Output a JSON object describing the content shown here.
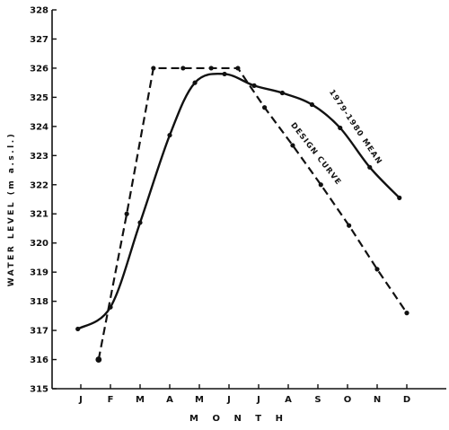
{
  "chart_data": {
    "type": "line",
    "xlabel": "M O N T H",
    "ylabel": "WATER LEVEL (m a.s.l.)",
    "ylim": [
      315,
      328
    ],
    "yticks": [
      315,
      316,
      317,
      318,
      319,
      320,
      321,
      322,
      323,
      324,
      325,
      326,
      327,
      328
    ],
    "categories": [
      "J",
      "F",
      "M",
      "A",
      "M",
      "J",
      "J",
      "A",
      "S",
      "O",
      "N",
      "D"
    ],
    "grid": false,
    "series": [
      {
        "name": "1979-1980 MEAN",
        "style": "solid",
        "points": [
          {
            "x": 0.9,
            "y": 317.05
          },
          {
            "x": 2.0,
            "y": 317.8
          },
          {
            "x": 3.0,
            "y": 320.7
          },
          {
            "x": 4.0,
            "y": 323.7
          },
          {
            "x": 4.85,
            "y": 325.5
          },
          {
            "x": 5.85,
            "y": 325.8
          },
          {
            "x": 6.85,
            "y": 325.4
          },
          {
            "x": 7.8,
            "y": 325.15
          },
          {
            "x": 8.8,
            "y": 324.75
          },
          {
            "x": 9.75,
            "y": 323.95
          },
          {
            "x": 10.75,
            "y": 322.6
          },
          {
            "x": 11.75,
            "y": 321.55
          }
        ]
      },
      {
        "name": "DESIGN CURVE",
        "style": "dashed",
        "points": [
          {
            "x": 1.6,
            "y": 316.0
          },
          {
            "x": 2.55,
            "y": 321.0
          },
          {
            "x": 3.45,
            "y": 326.0
          },
          {
            "x": 4.45,
            "y": 326.0
          },
          {
            "x": 5.4,
            "y": 326.0
          },
          {
            "x": 6.3,
            "y": 326.0
          },
          {
            "x": 7.2,
            "y": 324.65
          },
          {
            "x": 8.15,
            "y": 323.35
          },
          {
            "x": 9.1,
            "y": 322.0
          },
          {
            "x": 10.05,
            "y": 320.6
          },
          {
            "x": 11.0,
            "y": 319.1
          },
          {
            "x": 12.0,
            "y": 317.6
          }
        ]
      }
    ]
  }
}
